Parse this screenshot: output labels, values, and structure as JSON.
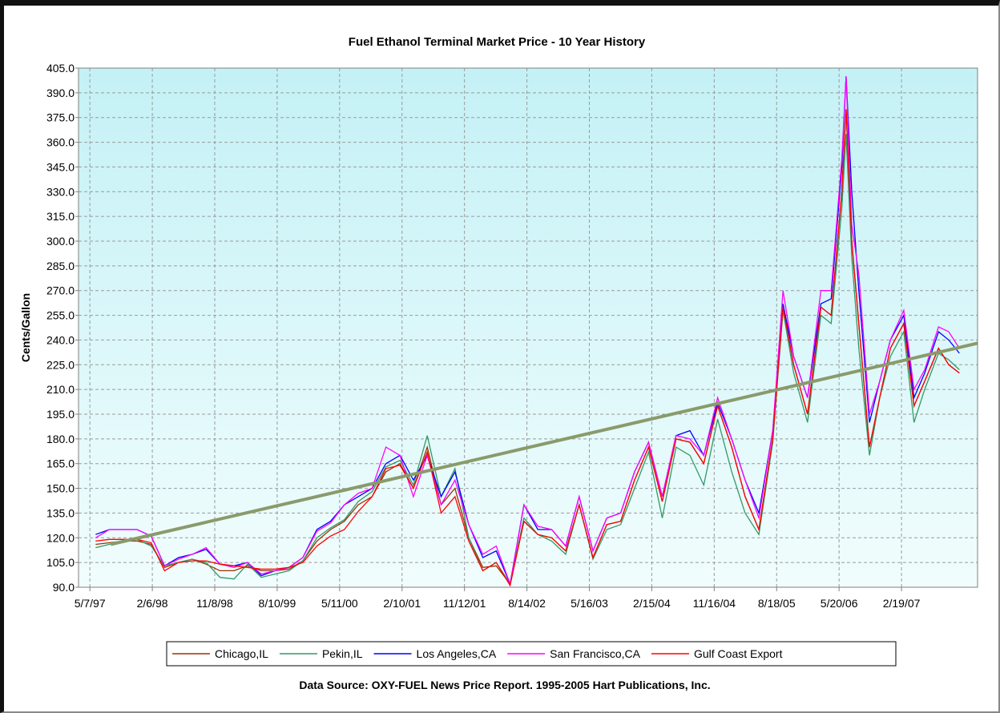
{
  "chart_data": {
    "type": "line",
    "title": "Fuel Ethanol Terminal Market Price - 10 Year History",
    "y_label": "Cents/Gallon",
    "source": "Data Source: OXY-FUEL News Price Report. 1995-2005 Hart Publications, Inc.",
    "grid": true,
    "legend": "bottom",
    "xlim": [
      "3/18/97",
      "1/20/08"
    ],
    "xticks": [
      "5/7/97",
      "2/6/98",
      "11/8/98",
      "8/10/99",
      "5/11/00",
      "2/10/01",
      "11/12/01",
      "8/14/02",
      "5/16/03",
      "2/15/04",
      "11/16/04",
      "8/18/05",
      "5/20/06",
      "2/19/07"
    ],
    "ylim": [
      90,
      405
    ],
    "yticks": [
      {
        "value": 90,
        "label": "90.0"
      },
      {
        "value": 105,
        "label": "105.0"
      },
      {
        "value": 120,
        "label": "120.0"
      },
      {
        "value": 135,
        "label": "135.0"
      },
      {
        "value": 150,
        "label": "150.0"
      },
      {
        "value": 165,
        "label": "165.0"
      },
      {
        "value": 180,
        "label": "180.0"
      },
      {
        "value": 195,
        "label": "195.0"
      },
      {
        "value": 210,
        "label": "210.0"
      },
      {
        "value": 225,
        "label": "225.0"
      },
      {
        "value": 240,
        "label": "240.0"
      },
      {
        "value": 255,
        "label": "255.0"
      },
      {
        "value": 270,
        "label": "270.0"
      },
      {
        "value": 285,
        "label": "285.0"
      },
      {
        "value": 300,
        "label": "300.0"
      },
      {
        "value": 315,
        "label": "315.0"
      },
      {
        "value": 330,
        "label": "330.0"
      },
      {
        "value": 345,
        "label": "345.0"
      },
      {
        "value": 360,
        "label": "360.0"
      },
      {
        "value": 375,
        "label": "375.0"
      },
      {
        "value": 390,
        "label": "390.0"
      },
      {
        "value": 405,
        "label": "405.0"
      }
    ],
    "x": [
      "6/1/97",
      "8/1/97",
      "10/1/97",
      "12/1/97",
      "2/1/98",
      "4/1/98",
      "6/1/98",
      "8/1/98",
      "10/1/98",
      "12/1/98",
      "2/1/99",
      "4/1/99",
      "6/1/99",
      "8/1/99",
      "10/1/99",
      "12/1/99",
      "2/1/00",
      "4/1/00",
      "6/1/00",
      "8/1/00",
      "10/1/00",
      "12/1/00",
      "2/1/01",
      "4/1/01",
      "6/1/01",
      "8/1/01",
      "10/1/01",
      "12/1/01",
      "2/1/02",
      "4/1/02",
      "6/1/02",
      "8/1/02",
      "10/1/02",
      "12/1/02",
      "2/1/03",
      "4/1/03",
      "6/1/03",
      "8/1/03",
      "10/1/03",
      "12/1/03",
      "2/1/04",
      "4/1/04",
      "6/1/04",
      "8/1/04",
      "10/1/04",
      "12/1/04",
      "2/1/05",
      "4/1/05",
      "6/1/05",
      "8/1/05",
      "9/15/05",
      "11/1/05",
      "1/1/06",
      "3/1/06",
      "4/15/06",
      "6/1/06",
      "6/20/06",
      "7/15/06",
      "8/15/06",
      "10/1/06",
      "11/15/06",
      "1/1/07",
      "3/1/07",
      "4/15/07",
      "6/1/07",
      "8/1/07",
      "9/15/07",
      "11/1/07"
    ],
    "series": [
      {
        "name": "Chicago,IL",
        "color": "#993300",
        "values": [
          116,
          117,
          118,
          118,
          116,
          102,
          105,
          107,
          104,
          100,
          100,
          103,
          100,
          100,
          101,
          106,
          118,
          125,
          130,
          140,
          145,
          160,
          165,
          150,
          175,
          140,
          150,
          120,
          102,
          103,
          92,
          130,
          122,
          120,
          112,
          140,
          108,
          128,
          130,
          155,
          175,
          142,
          180,
          178,
          165,
          200,
          175,
          145,
          125,
          180,
          260,
          225,
          195,
          260,
          255,
          330,
          380,
          300,
          250,
          175,
          205,
          235,
          250,
          200,
          215,
          235,
          225,
          220
        ]
      },
      {
        "name": "Pekin,IL",
        "color": "#339966",
        "values": [
          114,
          116,
          118,
          119,
          115,
          103,
          105,
          107,
          105,
          96,
          95,
          104,
          96,
          98,
          100,
          106,
          120,
          126,
          131,
          142,
          148,
          163,
          167,
          152,
          182,
          145,
          162,
          120,
          100,
          105,
          92,
          132,
          122,
          118,
          110,
          140,
          107,
          125,
          128,
          150,
          172,
          132,
          175,
          170,
          152,
          192,
          160,
          135,
          122,
          178,
          258,
          220,
          190,
          255,
          250,
          320,
          365,
          290,
          235,
          170,
          205,
          230,
          245,
          190,
          210,
          232,
          228,
          222
        ]
      },
      {
        "name": "Los Angeles,CA",
        "color": "#0000ff",
        "values": [
          122,
          125,
          125,
          125,
          121,
          103,
          108,
          110,
          113,
          104,
          103,
          105,
          97,
          100,
          102,
          108,
          125,
          130,
          140,
          145,
          150,
          165,
          170,
          155,
          170,
          145,
          160,
          128,
          108,
          112,
          92,
          140,
          125,
          125,
          115,
          145,
          112,
          132,
          135,
          160,
          178,
          145,
          182,
          185,
          170,
          202,
          180,
          155,
          135,
          185,
          262,
          230,
          205,
          262,
          265,
          345,
          400,
          330,
          270,
          190,
          215,
          240,
          255,
          205,
          220,
          245,
          240,
          232
        ]
      },
      {
        "name": "San Francisco,CA",
        "color": "#ff00ff",
        "values": [
          120,
          125,
          125,
          125,
          121,
          103,
          107,
          110,
          114,
          104,
          102,
          105,
          98,
          100,
          102,
          108,
          124,
          129,
          140,
          147,
          150,
          175,
          170,
          145,
          170,
          140,
          155,
          128,
          110,
          115,
          92,
          140,
          127,
          125,
          115,
          145,
          112,
          132,
          135,
          160,
          178,
          145,
          182,
          180,
          170,
          205,
          180,
          155,
          132,
          185,
          270,
          230,
          205,
          270,
          270,
          350,
          400,
          310,
          280,
          195,
          215,
          240,
          258,
          210,
          222,
          248,
          245,
          235
        ]
      },
      {
        "name": "Gulf Coast Export",
        "color": "#ff0000",
        "values": [
          118,
          119,
          119,
          119,
          117,
          100,
          105,
          106,
          106,
          104,
          103,
          102,
          101,
          101,
          102,
          105,
          115,
          121,
          125,
          136,
          145,
          162,
          164,
          150,
          172,
          135,
          145,
          118,
          100,
          105,
          91,
          130,
          122,
          120,
          112,
          140,
          108,
          128,
          130,
          155,
          175,
          142,
          180,
          178,
          165,
          200,
          175,
          145,
          125,
          180,
          260,
          225,
          195,
          260,
          255,
          330,
          380,
          300,
          250,
          175,
          205,
          235,
          250,
          200,
          215,
          235,
          225,
          220
        ]
      }
    ],
    "trendline": {
      "color": "#8a9a6b",
      "x": [
        "8/7/97",
        "1/20/08"
      ],
      "values": [
        116,
        238
      ]
    }
  }
}
